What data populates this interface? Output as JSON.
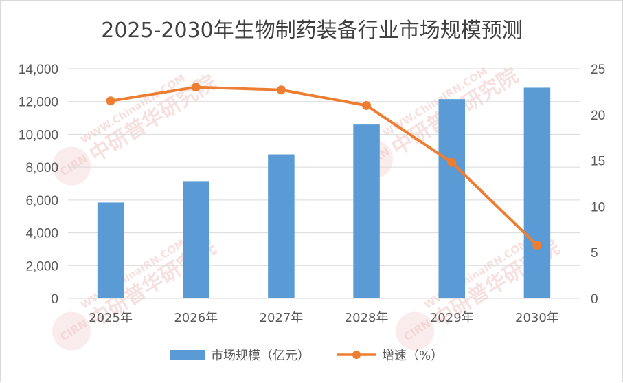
{
  "chart_data": {
    "type": "bar",
    "title": "2025-2030年生物制药装备行业市场规模预测",
    "categories": [
      "2025年",
      "2026年",
      "2027年",
      "2028年",
      "2029年",
      "2030年"
    ],
    "series": [
      {
        "name": "市场规模（亿元）",
        "type": "bar",
        "axis": "left",
        "color": "#5b9bd5",
        "values": [
          5850,
          7150,
          8780,
          10600,
          12150,
          12850
        ]
      },
      {
        "name": "增速（%）",
        "type": "line",
        "axis": "right",
        "color": "#ed7d31",
        "values": [
          21.5,
          23.0,
          22.7,
          21.0,
          14.8,
          5.8
        ]
      }
    ],
    "y_left": {
      "min": 0,
      "max": 14000,
      "ticks": [
        0,
        2000,
        4000,
        6000,
        8000,
        10000,
        12000,
        14000
      ],
      "tick_labels": [
        "0",
        "2,000",
        "4,000",
        "6,000",
        "8,000",
        "10,000",
        "12,000",
        "14,000"
      ]
    },
    "y_right": {
      "min": 0,
      "max": 25,
      "ticks": [
        0,
        5,
        10,
        15,
        20,
        25
      ],
      "tick_labels": [
        "0",
        "5",
        "10",
        "15",
        "20",
        "25"
      ]
    },
    "grid": true,
    "legend_position": "bottom"
  },
  "watermark": {
    "text": "中研普华研究院",
    "url": "WWW.ChinaIRN.COM",
    "logo": "CIRN"
  }
}
